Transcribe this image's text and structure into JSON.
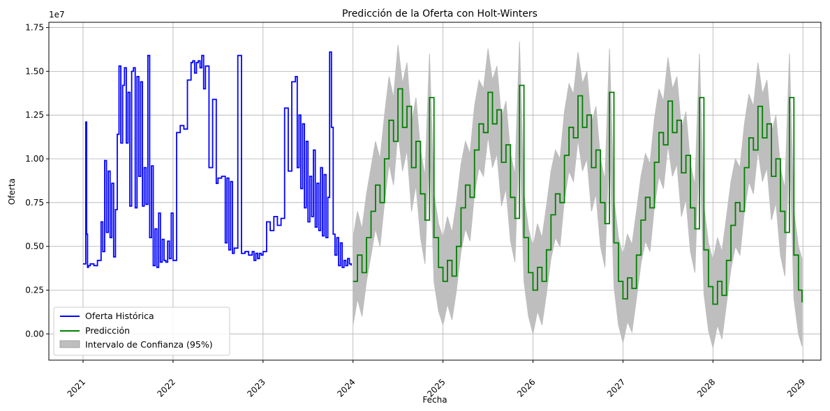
{
  "chart_data": {
    "type": "line",
    "title": "Predicción de la Oferta con Holt-Winters",
    "xlabel": "Fecha",
    "ylabel": "Oferta",
    "y_scale_label": "1e7",
    "xlim": [
      2020.62,
      2029.2
    ],
    "ylim": [
      -0.15,
      1.78
    ],
    "x_ticks": [
      2021,
      2022,
      2023,
      2024,
      2025,
      2026,
      2027,
      2028,
      2029
    ],
    "x_tick_labels": [
      "2021",
      "2022",
      "2023",
      "2024",
      "2025",
      "2026",
      "2027",
      "2028",
      "2029"
    ],
    "y_ticks": [
      0.0,
      0.25,
      0.5,
      0.75,
      1.0,
      1.25,
      1.5,
      1.75
    ],
    "y_tick_labels": [
      "0.00",
      "0.25",
      "0.50",
      "0.75",
      "1.00",
      "1.25",
      "1.50",
      "1.75"
    ],
    "grid": true,
    "legend_position": "lower-left",
    "series": [
      {
        "name": "Oferta Histórica",
        "color": "#0000ff",
        "kind": "line",
        "x": [
          2021.0,
          2021.02,
          2021.03,
          2021.04,
          2021.05,
          2021.06,
          2021.08,
          2021.12,
          2021.16,
          2021.2,
          2021.22,
          2021.24,
          2021.26,
          2021.28,
          2021.3,
          2021.32,
          2021.34,
          2021.36,
          2021.38,
          2021.4,
          2021.42,
          2021.44,
          2021.46,
          2021.48,
          2021.5,
          2021.52,
          2021.54,
          2021.56,
          2021.58,
          2021.6,
          2021.62,
          2021.64,
          2021.66,
          2021.68,
          2021.7,
          2021.72,
          2021.74,
          2021.76,
          2021.78,
          2021.8,
          2021.82,
          2021.84,
          2021.86,
          2021.88,
          2021.9,
          2021.92,
          2021.94,
          2021.96,
          2021.98,
          2022.0,
          2022.04,
          2022.08,
          2022.12,
          2022.16,
          2022.2,
          2022.22,
          2022.24,
          2022.26,
          2022.28,
          2022.3,
          2022.32,
          2022.34,
          2022.36,
          2022.4,
          2022.44,
          2022.48,
          2022.5,
          2022.54,
          2022.58,
          2022.6,
          2022.62,
          2022.64,
          2022.66,
          2022.68,
          2022.72,
          2022.76,
          2022.8,
          2022.84,
          2022.88,
          2022.9,
          2022.92,
          2022.94,
          2022.96,
          2022.98,
          2023.0,
          2023.04,
          2023.08,
          2023.12,
          2023.16,
          2023.2,
          2023.24,
          2023.28,
          2023.32,
          2023.36,
          2023.38,
          2023.4,
          2023.42,
          2023.44,
          2023.46,
          2023.48,
          2023.5,
          2023.52,
          2023.54,
          2023.56,
          2023.58,
          2023.6,
          2023.62,
          2023.64,
          2023.66,
          2023.68,
          2023.7,
          2023.72,
          2023.74,
          2023.76,
          2023.78,
          2023.8,
          2023.82,
          2023.84,
          2023.86,
          2023.88,
          2023.9,
          2023.92,
          2023.94,
          2023.96,
          2023.98
        ],
        "y": [
          0.4,
          0.4,
          1.21,
          0.57,
          0.38,
          0.39,
          0.4,
          0.39,
          0.42,
          0.64,
          0.47,
          0.99,
          0.58,
          0.93,
          0.55,
          0.86,
          0.44,
          0.71,
          1.14,
          1.53,
          1.09,
          1.42,
          1.52,
          1.09,
          1.38,
          0.73,
          1.5,
          1.52,
          0.72,
          1.47,
          0.9,
          1.44,
          0.73,
          0.95,
          0.74,
          1.59,
          0.55,
          0.96,
          0.39,
          0.6,
          0.38,
          0.69,
          0.41,
          0.54,
          0.42,
          0.41,
          0.53,
          0.43,
          0.69,
          0.42,
          1.15,
          1.19,
          1.17,
          1.45,
          1.55,
          1.56,
          1.49,
          1.55,
          1.56,
          1.52,
          1.59,
          1.4,
          1.53,
          0.95,
          1.34,
          0.86,
          0.89,
          0.9,
          0.52,
          0.89,
          0.48,
          0.87,
          0.46,
          0.49,
          1.59,
          0.46,
          0.47,
          0.45,
          0.47,
          0.42,
          0.46,
          0.43,
          0.46,
          0.45,
          0.47,
          0.64,
          0.59,
          0.67,
          0.62,
          0.66,
          1.29,
          0.93,
          1.44,
          1.47,
          0.95,
          1.25,
          0.83,
          1.2,
          0.72,
          1.1,
          0.64,
          0.9,
          0.67,
          1.05,
          0.61,
          0.86,
          0.59,
          0.95,
          0.56,
          0.91,
          0.55,
          0.78,
          1.61,
          1.18,
          0.57,
          0.45,
          0.55,
          0.39,
          0.52,
          0.38,
          0.42,
          0.39,
          0.43,
          0.4,
          0.39
        ]
      },
      {
        "name": "Predicción",
        "color": "#008000",
        "kind": "line",
        "x": [
          2024.0,
          2024.05,
          2024.1,
          2024.15,
          2024.2,
          2024.25,
          2024.3,
          2024.35,
          2024.4,
          2024.45,
          2024.5,
          2024.55,
          2024.6,
          2024.65,
          2024.7,
          2024.75,
          2024.8,
          2024.85,
          2024.9,
          2024.95,
          2025.0,
          2025.05,
          2025.1,
          2025.15,
          2025.2,
          2025.25,
          2025.3,
          2025.35,
          2025.4,
          2025.45,
          2025.5,
          2025.55,
          2025.6,
          2025.65,
          2025.7,
          2025.75,
          2025.8,
          2025.85,
          2025.9,
          2025.95,
          2026.0,
          2026.05,
          2026.1,
          2026.15,
          2026.2,
          2026.25,
          2026.3,
          2026.35,
          2026.4,
          2026.45,
          2026.5,
          2026.55,
          2026.6,
          2026.65,
          2026.7,
          2026.75,
          2026.8,
          2026.85,
          2026.9,
          2026.95,
          2027.0,
          2027.05,
          2027.1,
          2027.15,
          2027.2,
          2027.25,
          2027.3,
          2027.35,
          2027.4,
          2027.45,
          2027.5,
          2027.55,
          2027.6,
          2027.65,
          2027.7,
          2027.75,
          2027.8,
          2027.85,
          2027.9,
          2027.95,
          2028.0,
          2028.05,
          2028.1,
          2028.15,
          2028.2,
          2028.25,
          2028.3,
          2028.35,
          2028.4,
          2028.45,
          2028.5,
          2028.55,
          2028.6,
          2028.65,
          2028.7,
          2028.75,
          2028.8,
          2028.85,
          2028.9,
          2028.95,
          2028.99
        ],
        "y": [
          0.3,
          0.45,
          0.35,
          0.55,
          0.7,
          0.85,
          0.75,
          1.0,
          1.22,
          1.1,
          1.4,
          1.18,
          1.3,
          0.95,
          1.1,
          0.8,
          0.65,
          1.35,
          0.55,
          0.38,
          0.3,
          0.42,
          0.33,
          0.5,
          0.72,
          0.85,
          0.78,
          1.05,
          1.2,
          1.15,
          1.38,
          1.2,
          1.28,
          0.98,
          1.08,
          0.78,
          0.66,
          1.42,
          0.55,
          0.35,
          0.25,
          0.38,
          0.3,
          0.48,
          0.68,
          0.8,
          0.75,
          1.02,
          1.18,
          1.12,
          1.36,
          1.18,
          1.25,
          0.95,
          1.05,
          0.75,
          0.63,
          1.38,
          0.52,
          0.3,
          0.2,
          0.32,
          0.26,
          0.45,
          0.65,
          0.78,
          0.72,
          0.98,
          1.15,
          1.08,
          1.33,
          1.15,
          1.22,
          0.92,
          1.02,
          0.72,
          0.6,
          1.35,
          0.48,
          0.27,
          0.17,
          0.3,
          0.22,
          0.42,
          0.62,
          0.75,
          0.7,
          0.95,
          1.12,
          1.05,
          1.3,
          1.12,
          1.2,
          0.9,
          1.0,
          0.7,
          0.58,
          1.35,
          0.45,
          0.25,
          0.18
        ]
      },
      {
        "name": "Intervalo de Confianza (95%)",
        "color": "#bebebe",
        "kind": "band",
        "half_width": 0.25
      }
    ]
  }
}
